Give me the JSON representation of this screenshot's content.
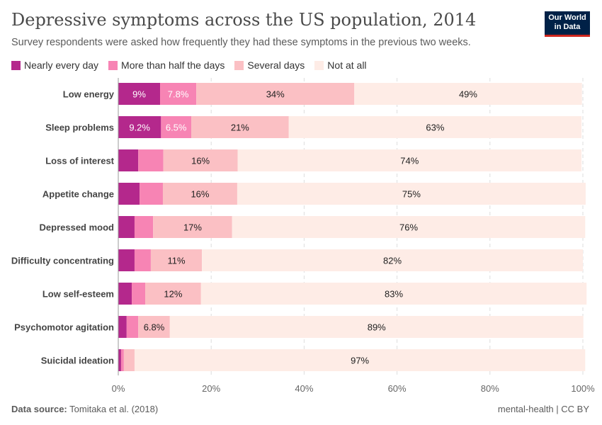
{
  "header": {
    "title": "Depressive symptoms across the US population, 2014",
    "subtitle": "Survey respondents were asked how frequently they had these symptoms in the previous two weeks.",
    "logo": "Our World in Data"
  },
  "footer": {
    "source_label": "Data source:",
    "source": "Tomitaka et al. (2018)",
    "right": "mental-health | CC BY"
  },
  "chart_data": {
    "type": "bar",
    "orientation": "horizontal",
    "stacked": true,
    "categories": [
      "Low energy",
      "Sleep problems",
      "Loss of interest",
      "Appetite change",
      "Depressed mood",
      "Difficulty concentrating",
      "Low self-esteem",
      "Psychomotor agitation",
      "Suicidal ideation"
    ],
    "series": [
      {
        "name": "Nearly every day",
        "color": "#b4288c",
        "values": [
          9,
          9.2,
          4.3,
          4.6,
          3.5,
          3.5,
          2.9,
          1.8,
          0.6
        ],
        "labels": [
          "9%",
          "9.2%",
          "",
          "",
          "",
          "",
          "",
          "",
          ""
        ]
      },
      {
        "name": "More than half the days",
        "color": "#f784b4",
        "values": [
          7.8,
          6.5,
          5.4,
          5.0,
          4.0,
          3.5,
          2.9,
          2.5,
          0.6
        ],
        "labels": [
          "7.8%",
          "6.5%",
          "",
          "",
          "",
          "",
          "",
          "",
          ""
        ]
      },
      {
        "name": "Several days",
        "color": "#fbc0c4",
        "values": [
          34,
          21,
          16,
          16,
          17,
          11,
          12,
          6.8,
          2.3
        ],
        "labels": [
          "34%",
          "21%",
          "16%",
          "16%",
          "17%",
          "11%",
          "12%",
          "6.8%",
          ""
        ]
      },
      {
        "name": "Not at all",
        "color": "#feece6",
        "values": [
          49,
          63,
          74,
          75,
          76,
          82,
          83,
          89,
          97
        ],
        "labels": [
          "49%",
          "63%",
          "74%",
          "75%",
          "76%",
          "82%",
          "83%",
          "89%",
          "97%"
        ]
      }
    ],
    "xlim": [
      0,
      100
    ],
    "xticks": [
      "0%",
      "20%",
      "40%",
      "60%",
      "80%",
      "100%"
    ],
    "grid": true,
    "legend": "top-left"
  }
}
